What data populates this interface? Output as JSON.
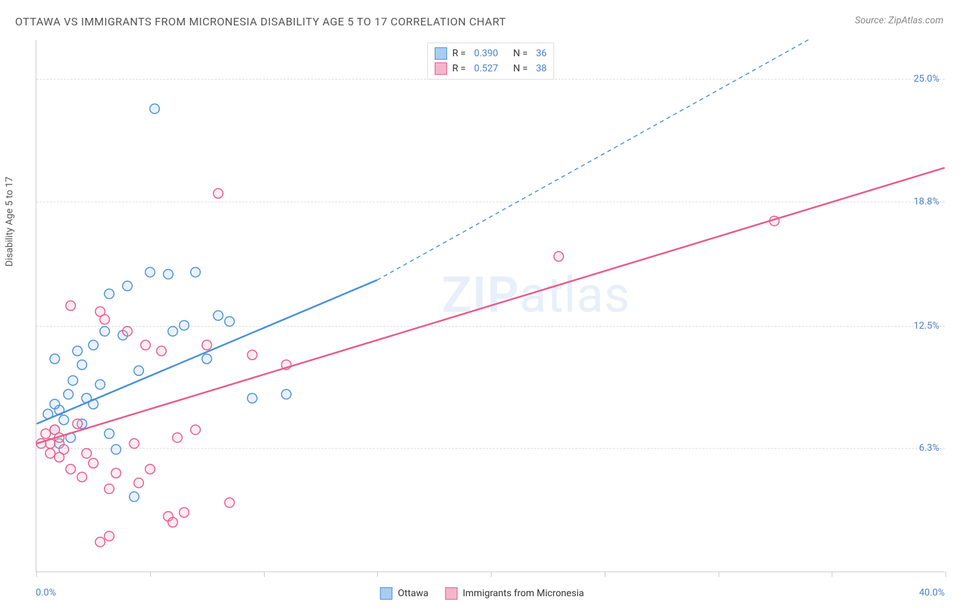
{
  "title": "OTTAWA VS IMMIGRANTS FROM MICRONESIA DISABILITY AGE 5 TO 17 CORRELATION CHART",
  "source": "Source: ZipAtlas.com",
  "watermark": "ZIPatlas",
  "y_axis_title": "Disability Age 5 to 17",
  "chart": {
    "type": "scatter",
    "background_color": "#ffffff",
    "grid_color": "#dddddd",
    "axis_color": "#cccccc",
    "tick_label_color": "#4a7fc9",
    "xlim": [
      0,
      40
    ],
    "ylim": [
      0,
      27
    ],
    "y_ticks": [
      {
        "value": 6.3,
        "label": "6.3%"
      },
      {
        "value": 12.5,
        "label": "12.5%"
      },
      {
        "value": 18.8,
        "label": "18.8%"
      },
      {
        "value": 25.0,
        "label": "25.0%"
      }
    ],
    "x_tick_positions": [
      0,
      5,
      10,
      15,
      20,
      25,
      30,
      35,
      40
    ],
    "x_label_min": "0.0%",
    "x_label_max": "40.0%",
    "marker_radius": 7,
    "marker_stroke_width": 1.5,
    "marker_fill_opacity": 0.25,
    "line_width": 2.5,
    "dash_pattern": "6,5",
    "series": [
      {
        "name": "Ottawa",
        "color": "#4a90d9",
        "fill": "#a8cdef",
        "r_value": "0.390",
        "n_value": "36",
        "trend_solid": {
          "x1": 0,
          "y1": 7.5,
          "x2": 15,
          "y2": 14.8
        },
        "trend_dashed": {
          "x1": 15,
          "y1": 14.8,
          "x2": 34,
          "y2": 27
        },
        "points": [
          [
            0.5,
            8.0
          ],
          [
            0.8,
            7.2
          ],
          [
            1.0,
            8.2
          ],
          [
            1.2,
            7.7
          ],
          [
            1.4,
            9.0
          ],
          [
            1.6,
            9.7
          ],
          [
            1.8,
            11.2
          ],
          [
            2.0,
            10.5
          ],
          [
            2.2,
            8.8
          ],
          [
            2.5,
            11.5
          ],
          [
            2.8,
            9.5
          ],
          [
            3.0,
            12.2
          ],
          [
            3.2,
            14.1
          ],
          [
            3.5,
            6.2
          ],
          [
            3.8,
            12.0
          ],
          [
            4.0,
            14.5
          ],
          [
            4.3,
            3.8
          ],
          [
            4.5,
            10.2
          ],
          [
            5.0,
            15.2
          ],
          [
            5.2,
            23.5
          ],
          [
            5.8,
            15.1
          ],
          [
            6.0,
            12.2
          ],
          [
            6.5,
            12.5
          ],
          [
            7.0,
            15.2
          ],
          [
            7.5,
            10.8
          ],
          [
            8.0,
            13.0
          ],
          [
            8.5,
            12.7
          ],
          [
            9.5,
            8.8
          ],
          [
            11.0,
            9.0
          ],
          [
            1.0,
            6.5
          ],
          [
            1.5,
            6.8
          ],
          [
            0.8,
            10.8
          ],
          [
            2.0,
            7.5
          ],
          [
            2.5,
            8.5
          ],
          [
            3.2,
            7.0
          ],
          [
            0.8,
            8.5
          ]
        ]
      },
      {
        "name": "Immigrants from Micronesia",
        "color": "#e85a8a",
        "fill": "#f4b5ca",
        "r_value": "0.527",
        "n_value": "38",
        "trend_solid": {
          "x1": 0,
          "y1": 6.5,
          "x2": 40,
          "y2": 20.5
        },
        "trend_dashed": null,
        "points": [
          [
            0.4,
            7.0
          ],
          [
            0.6,
            6.5
          ],
          [
            0.8,
            7.2
          ],
          [
            1.0,
            6.8
          ],
          [
            1.2,
            6.2
          ],
          [
            1.5,
            5.2
          ],
          [
            1.8,
            7.5
          ],
          [
            2.0,
            4.8
          ],
          [
            2.2,
            6.0
          ],
          [
            2.5,
            5.5
          ],
          [
            2.8,
            13.2
          ],
          [
            3.0,
            12.8
          ],
          [
            3.2,
            4.2
          ],
          [
            3.5,
            5.0
          ],
          [
            4.0,
            12.2
          ],
          [
            4.3,
            6.5
          ],
          [
            4.5,
            4.5
          ],
          [
            4.8,
            11.5
          ],
          [
            5.0,
            5.2
          ],
          [
            5.5,
            11.2
          ],
          [
            5.8,
            2.8
          ],
          [
            6.0,
            2.5
          ],
          [
            6.2,
            6.8
          ],
          [
            6.5,
            3.0
          ],
          [
            7.0,
            7.2
          ],
          [
            7.5,
            11.5
          ],
          [
            8.0,
            19.2
          ],
          [
            8.5,
            3.5
          ],
          [
            9.5,
            11.0
          ],
          [
            11.0,
            10.5
          ],
          [
            3.2,
            1.8
          ],
          [
            2.8,
            1.5
          ],
          [
            1.0,
            5.8
          ],
          [
            0.6,
            6.0
          ],
          [
            1.5,
            13.5
          ],
          [
            23.0,
            16.0
          ],
          [
            32.5,
            17.8
          ],
          [
            0.2,
            6.5
          ]
        ]
      }
    ]
  },
  "legend_bottom": [
    {
      "label": "Ottawa",
      "color": "#4a90d9",
      "fill": "#a8cdef"
    },
    {
      "label": "Immigrants from Micronesia",
      "color": "#e85a8a",
      "fill": "#f4b5ca"
    }
  ]
}
